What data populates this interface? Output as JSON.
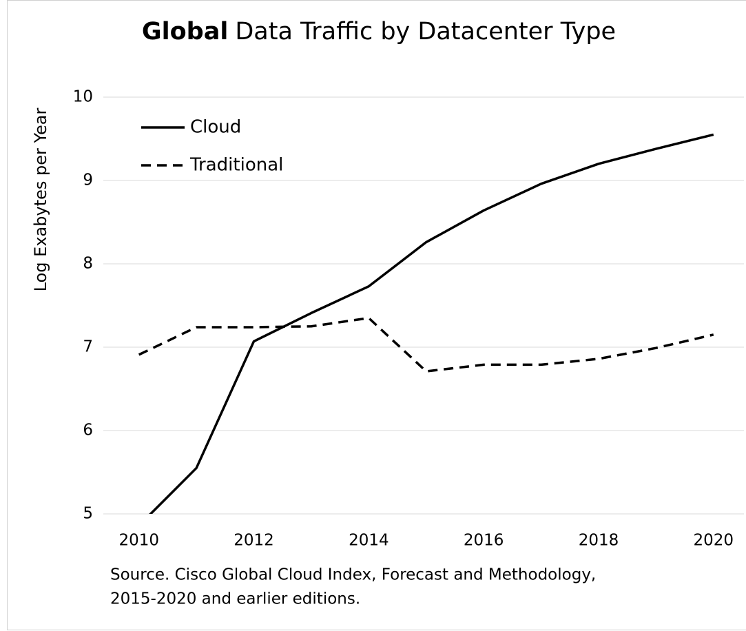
{
  "chart_data": {
    "type": "line",
    "title_parts": [
      "Global",
      "Data Traffic by Datacenter Type"
    ],
    "y_label": "Log Exabytes per Year",
    "source_lines": [
      "Source.  Cisco Global Cloud Index, Forecast and Methodology,",
      "2015-2020 and earlier editions."
    ],
    "x": [
      2010,
      2011,
      2012,
      2013,
      2014,
      2015,
      2016,
      2017,
      2018,
      2019,
      2020
    ],
    "series": [
      {
        "name": "Cloud",
        "color": "#000000",
        "dash": "solid",
        "values": [
          4.86,
          5.55,
          7.07,
          7.41,
          7.73,
          8.26,
          8.64,
          8.96,
          9.2,
          9.38,
          9.55
        ]
      },
      {
        "name": "Traditional",
        "color": "#000000",
        "dash": "dashed",
        "values": [
          6.91,
          7.24,
          7.24,
          7.25,
          7.35,
          6.71,
          6.79,
          6.79,
          6.86,
          6.99,
          7.15
        ]
      }
    ],
    "xlim": [
      2009.38,
      2020.53
    ],
    "ylim": [
      5,
      10
    ],
    "xticks": [
      2010,
      2012,
      2014,
      2016,
      2018,
      2020
    ],
    "yticks": [
      5,
      6,
      7,
      8,
      9,
      10
    ],
    "grid": true,
    "legend": "upper left"
  }
}
